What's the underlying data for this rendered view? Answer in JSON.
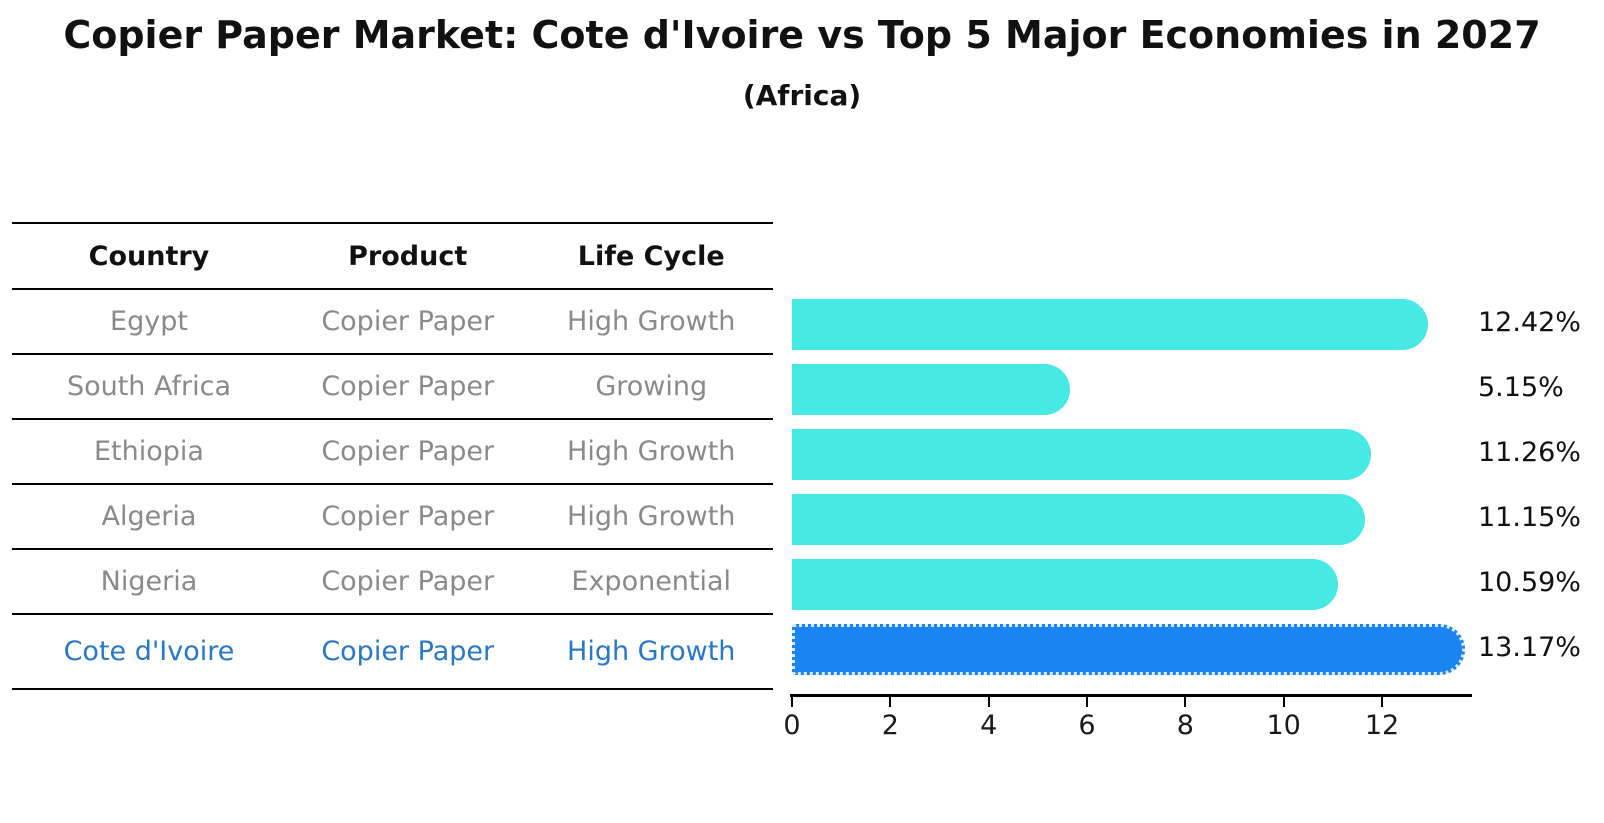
{
  "title": "Copier Paper Market: Cote d'Ivoire vs Top 5 Major Economies in 2027",
  "subtitle": "(Africa)",
  "table": {
    "headers": [
      "Country",
      "Product",
      "Life Cycle"
    ],
    "rows": [
      {
        "country": "Egypt",
        "product": "Copier Paper",
        "life_cycle": "High Growth",
        "highlight": false
      },
      {
        "country": "South Africa",
        "product": "Copier Paper",
        "life_cycle": "Growing",
        "highlight": false
      },
      {
        "country": "Ethiopia",
        "product": "Copier Paper",
        "life_cycle": "High Growth",
        "highlight": false
      },
      {
        "country": "Algeria",
        "product": "Copier Paper",
        "life_cycle": "High Growth",
        "highlight": false
      },
      {
        "country": "Nigeria",
        "product": "Copier Paper",
        "life_cycle": "Exponential",
        "highlight": false
      },
      {
        "country": "Cote d'Ivoire",
        "product": "Copier Paper",
        "life_cycle": "High Growth",
        "highlight": true
      }
    ]
  },
  "chart_data": {
    "type": "bar",
    "orientation": "horizontal",
    "title": "Copier Paper Market: Cote d'Ivoire vs Top 5 Major Economies in 2027",
    "subtitle": "(Africa)",
    "categories": [
      "Egypt",
      "South Africa",
      "Ethiopia",
      "Algeria",
      "Nigeria",
      "Cote d'Ivoire"
    ],
    "values": [
      12.42,
      5.15,
      11.26,
      11.15,
      10.59,
      13.17
    ],
    "value_labels": [
      "12.42%",
      "5.15%",
      "11.26%",
      "11.15%",
      "10.59%",
      "13.17%"
    ],
    "xlabel": "",
    "ylabel": "",
    "xlim": [
      0,
      13.9
    ],
    "x_ticks": [
      0,
      2,
      4,
      6,
      8,
      10,
      12
    ],
    "grid": false,
    "legend": false,
    "bar_color": "#47E9E4",
    "highlight_bar_color": "#1B84F0",
    "highlight_text_color": "#2878C8",
    "highlight_index": 5
  }
}
